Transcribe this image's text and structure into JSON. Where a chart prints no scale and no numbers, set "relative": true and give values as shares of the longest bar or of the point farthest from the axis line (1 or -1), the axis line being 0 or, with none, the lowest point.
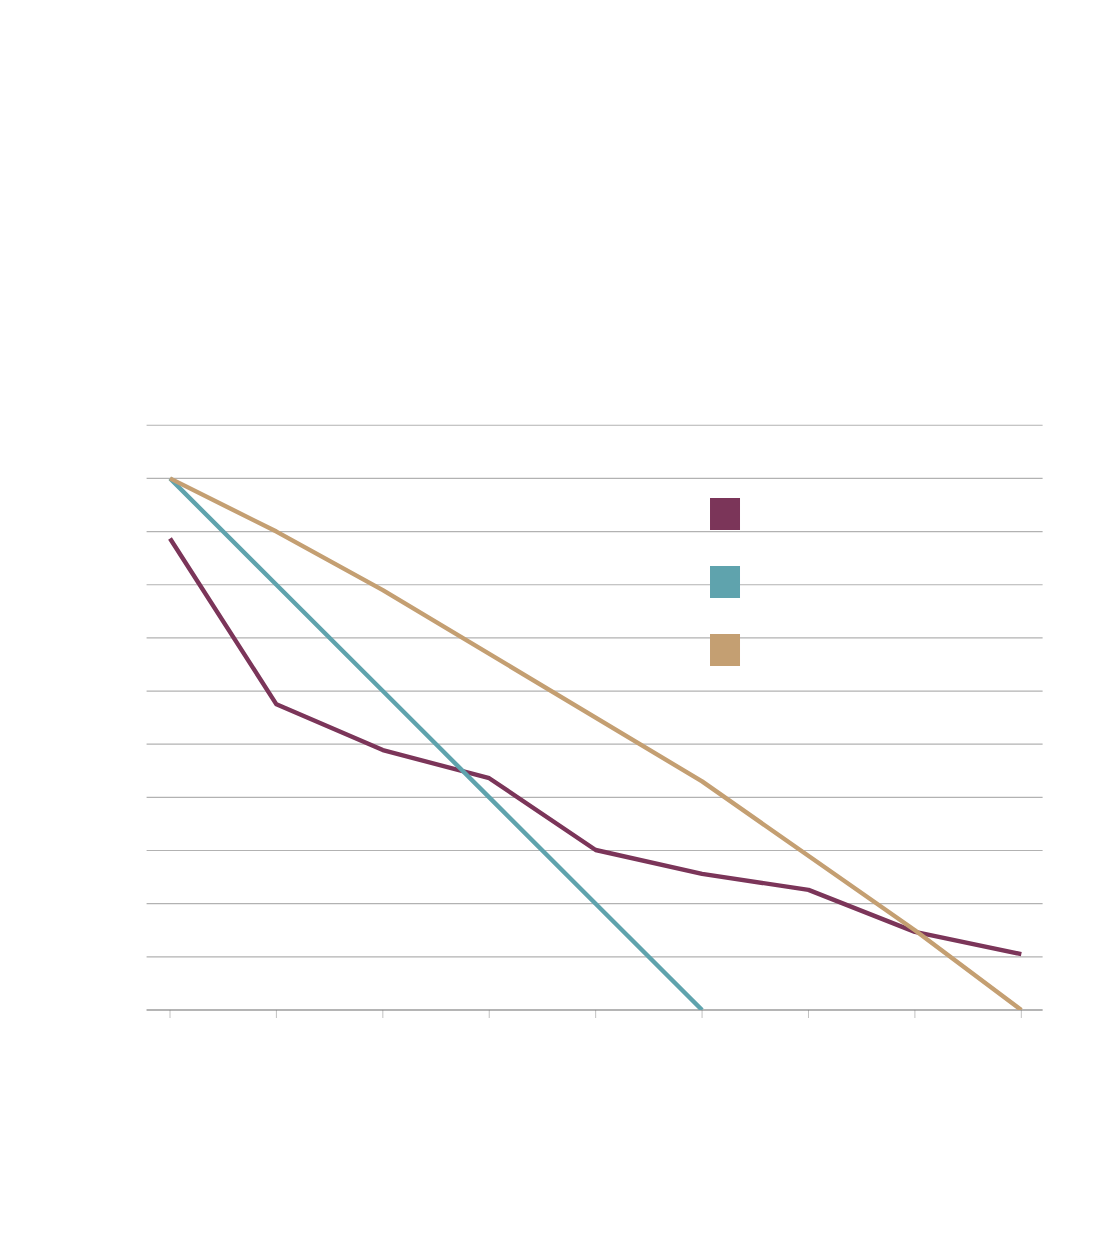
{
  "chart_data": {
    "type": "line",
    "relative": true,
    "grid": "y",
    "marker": "none",
    "line_style": "solid",
    "categories": [
      null,
      null,
      null,
      null,
      null,
      null,
      null,
      null,
      null
    ],
    "series": [
      {
        "color": "#7b3559",
        "values": [
          0.887,
          0.575,
          0.489,
          0.436,
          0.301,
          0.256,
          0.226,
          0.147,
          0.105
        ]
      },
      {
        "color": "#5fa3ad",
        "values": [
          1,
          0.8,
          0.6,
          0.4,
          0.2,
          0,
          null,
          null,
          null
        ]
      },
      {
        "color": "#c49f72",
        "values": [
          1,
          0.9,
          0.79,
          0.67,
          0.55,
          0.43,
          0.29,
          0.15,
          0
        ]
      }
    ]
  }
}
